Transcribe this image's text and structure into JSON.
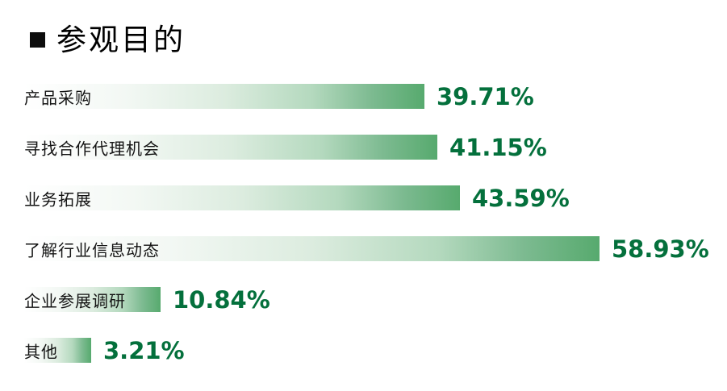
{
  "header": {
    "title": "参观目的"
  },
  "chart_data": {
    "type": "bar",
    "orientation": "horizontal",
    "title": "参观目的",
    "categories": [
      "产品采购",
      "寻找合作代理机会",
      "业务拓展",
      "了解行业信息动态",
      "企业参展调研",
      "其他"
    ],
    "values": [
      39.71,
      41.15,
      43.59,
      58.93,
      10.84,
      3.21
    ],
    "value_labels": [
      "39.71%",
      "41.15%",
      "43.59%",
      "58.93%",
      "10.84%",
      "3.21%"
    ],
    "unit": "%",
    "xlim": [
      0,
      60
    ],
    "grid": false,
    "legend": false,
    "colors": {
      "background": "#ffffff",
      "bullet": "#0d0d0d",
      "title_text": "#000000",
      "category_text": "#141414",
      "value_text": "#04703c",
      "bar_gradient_start": "#ffffff",
      "bar_gradient_end": "#57aa6e"
    }
  }
}
